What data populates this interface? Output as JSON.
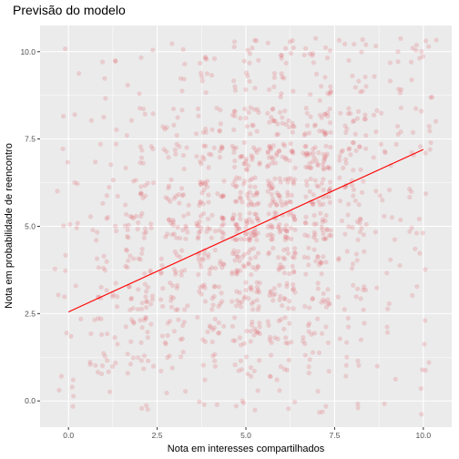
{
  "chart_data": {
    "type": "scatter",
    "title": "Previsão do modelo",
    "xlabel": "Nota em interesses compartilhados",
    "ylabel": "Nota em probabilidade de reencontro",
    "xlim": [
      -0.8,
      10.8
    ],
    "ylim": [
      -0.75,
      10.75
    ],
    "x_ticks": [
      0,
      2.5,
      5,
      7.5,
      10
    ],
    "y_ticks": [
      0,
      2.5,
      5,
      7.5,
      10
    ],
    "x_tick_labels": [
      "0.0",
      "2.5",
      "5.0",
      "7.5",
      "10.0"
    ],
    "y_tick_labels": [
      "0.0",
      "2.5",
      "5.0",
      "7.5",
      "10.0"
    ],
    "grid": true,
    "point_color": "#e0606a",
    "line_color": "#ff0000",
    "jitter": true,
    "regression_line": {
      "x": [
        0,
        10
      ],
      "y": [
        2.55,
        7.2
      ]
    },
    "point_clusters": [
      [
        0,
        0,
        4
      ],
      [
        1,
        0,
        1
      ],
      [
        2,
        0,
        3
      ],
      [
        3,
        0,
        2
      ],
      [
        4,
        0,
        3
      ],
      [
        5,
        0,
        5
      ],
      [
        6,
        0,
        3
      ],
      [
        7,
        0,
        4
      ],
      [
        8,
        0,
        2
      ],
      [
        9,
        0,
        1
      ],
      [
        10,
        0,
        2
      ],
      [
        0,
        1,
        2
      ],
      [
        1,
        1,
        12
      ],
      [
        2,
        1,
        10
      ],
      [
        3,
        1,
        6
      ],
      [
        4,
        1,
        6
      ],
      [
        5,
        1,
        10
      ],
      [
        6,
        1,
        8
      ],
      [
        7,
        1,
        7
      ],
      [
        8,
        1,
        5
      ],
      [
        9,
        1,
        2
      ],
      [
        10,
        1,
        3
      ],
      [
        0,
        2,
        3
      ],
      [
        1,
        2,
        8
      ],
      [
        2,
        2,
        14
      ],
      [
        3,
        2,
        12
      ],
      [
        4,
        2,
        14
      ],
      [
        5,
        2,
        20
      ],
      [
        6,
        2,
        16
      ],
      [
        7,
        2,
        12
      ],
      [
        8,
        2,
        6
      ],
      [
        9,
        2,
        2
      ],
      [
        10,
        2,
        2
      ],
      [
        0,
        3,
        3
      ],
      [
        1,
        3,
        10
      ],
      [
        2,
        3,
        20
      ],
      [
        3,
        3,
        15
      ],
      [
        4,
        3,
        18
      ],
      [
        5,
        3,
        28
      ],
      [
        6,
        3,
        22
      ],
      [
        7,
        3,
        15
      ],
      [
        8,
        3,
        10
      ],
      [
        9,
        3,
        3
      ],
      [
        10,
        3,
        2
      ],
      [
        0,
        4,
        3
      ],
      [
        1,
        4,
        6
      ],
      [
        2,
        4,
        14
      ],
      [
        3,
        4,
        14
      ],
      [
        4,
        4,
        22
      ],
      [
        5,
        4,
        32
      ],
      [
        6,
        4,
        24
      ],
      [
        7,
        4,
        16
      ],
      [
        8,
        4,
        8
      ],
      [
        9,
        4,
        3
      ],
      [
        10,
        4,
        3
      ],
      [
        0,
        5,
        4
      ],
      [
        1,
        5,
        8
      ],
      [
        2,
        5,
        20
      ],
      [
        3,
        5,
        20
      ],
      [
        4,
        5,
        28
      ],
      [
        5,
        5,
        45
      ],
      [
        6,
        5,
        38
      ],
      [
        7,
        5,
        28
      ],
      [
        8,
        5,
        14
      ],
      [
        9,
        5,
        5
      ],
      [
        10,
        5,
        5
      ],
      [
        0,
        6,
        3
      ],
      [
        1,
        6,
        5
      ],
      [
        2,
        6,
        12
      ],
      [
        3,
        6,
        14
      ],
      [
        4,
        6,
        22
      ],
      [
        5,
        6,
        32
      ],
      [
        6,
        6,
        38
      ],
      [
        7,
        6,
        28
      ],
      [
        8,
        6,
        14
      ],
      [
        9,
        6,
        4
      ],
      [
        10,
        6,
        4
      ],
      [
        0,
        7,
        2
      ],
      [
        1,
        7,
        4
      ],
      [
        2,
        7,
        8
      ],
      [
        3,
        7,
        10
      ],
      [
        4,
        7,
        16
      ],
      [
        5,
        7,
        26
      ],
      [
        6,
        7,
        30
      ],
      [
        7,
        7,
        36
      ],
      [
        8,
        7,
        18
      ],
      [
        9,
        7,
        6
      ],
      [
        10,
        7,
        6
      ],
      [
        0,
        8,
        2
      ],
      [
        1,
        8,
        3
      ],
      [
        2,
        8,
        6
      ],
      [
        3,
        8,
        8
      ],
      [
        4,
        8,
        12
      ],
      [
        5,
        8,
        18
      ],
      [
        6,
        8,
        22
      ],
      [
        7,
        8,
        24
      ],
      [
        8,
        8,
        16
      ],
      [
        9,
        8,
        8
      ],
      [
        10,
        8,
        6
      ],
      [
        0,
        9,
        1
      ],
      [
        1,
        9,
        2
      ],
      [
        2,
        9,
        2
      ],
      [
        3,
        9,
        3
      ],
      [
        4,
        9,
        6
      ],
      [
        5,
        9,
        8
      ],
      [
        6,
        9,
        10
      ],
      [
        7,
        9,
        10
      ],
      [
        8,
        9,
        7
      ],
      [
        9,
        9,
        5
      ],
      [
        10,
        9,
        3
      ],
      [
        0,
        10,
        1
      ],
      [
        1,
        10,
        3
      ],
      [
        2,
        10,
        2
      ],
      [
        3,
        10,
        3
      ],
      [
        4,
        10,
        5
      ],
      [
        5,
        10,
        10
      ],
      [
        6,
        10,
        10
      ],
      [
        7,
        10,
        10
      ],
      [
        8,
        10,
        7
      ],
      [
        9,
        10,
        5
      ],
      [
        10,
        10,
        10
      ]
    ]
  }
}
